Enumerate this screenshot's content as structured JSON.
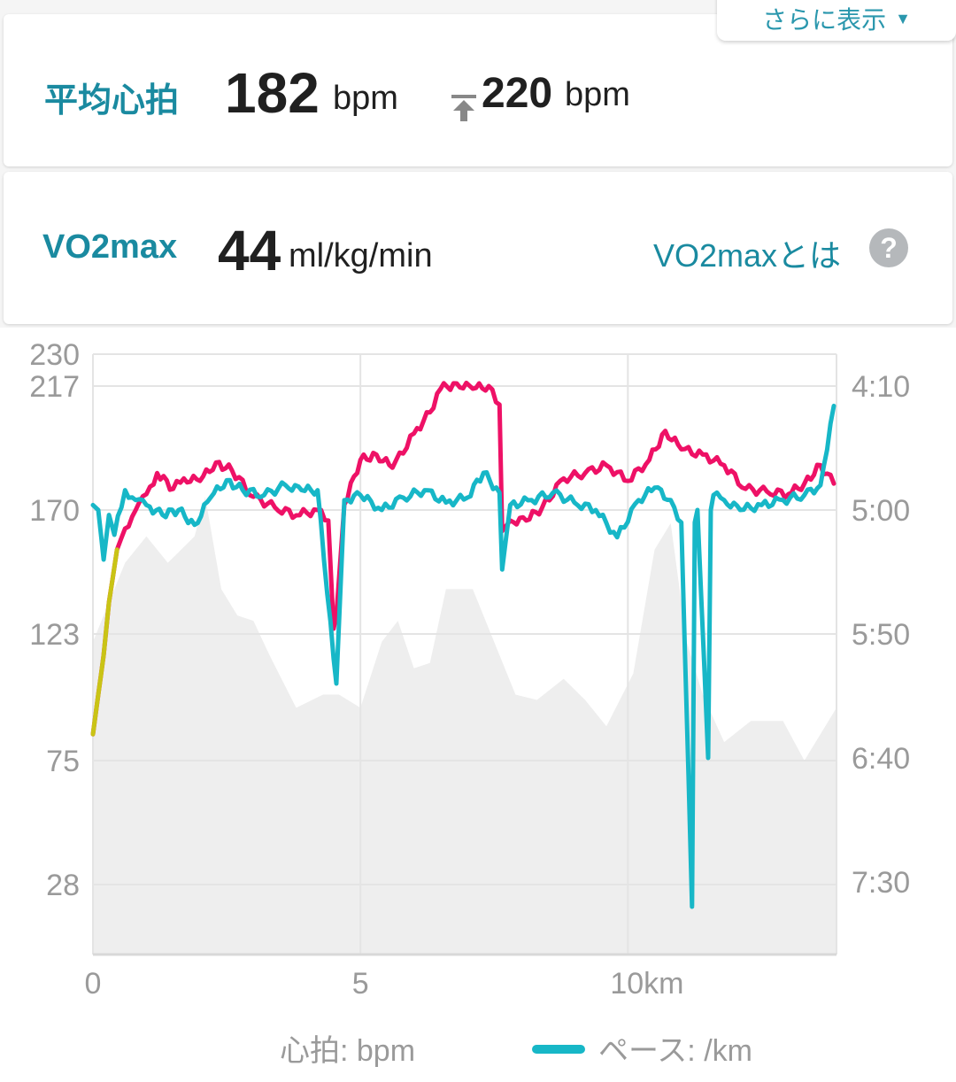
{
  "more": {
    "label": "さらに表示"
  },
  "heart_rate": {
    "label": "平均心拍",
    "avg_value": "182",
    "avg_unit": "bpm",
    "max_value": "220",
    "max_unit": "bpm"
  },
  "vo2": {
    "label": "VO2max",
    "value": "44",
    "unit": "ml/kg/min",
    "link": "VO2maxとは",
    "help": "?"
  },
  "colors": {
    "heart_rate_line": "#ee1166",
    "pace_line": "#17b7c7",
    "elevation_fill": "#eeeeee",
    "accent": "#1a8aa0"
  },
  "chart_data": {
    "type": "line",
    "x_ticks": [
      "0",
      "5",
      "10km"
    ],
    "xlim": [
      0,
      13.9
    ],
    "left_axis": {
      "ticks": [
        "230",
        "217",
        "170",
        "123",
        "75",
        "28"
      ],
      "ylim": [
        0,
        230
      ]
    },
    "right_axis": {
      "ticks": [
        "4:10",
        "5:00",
        "5:50",
        "6:40",
        "7:30"
      ]
    },
    "legend": [
      "心拍: bpm",
      "ペース: /km"
    ],
    "series": [
      {
        "name": "心拍: bpm",
        "x": [
          0,
          0.1,
          0.2,
          0.3,
          0.45,
          0.6,
          0.8,
          1.0,
          1.2,
          1.5,
          1.7,
          2.0,
          2.3,
          2.6,
          3.0,
          3.4,
          3.8,
          4.2,
          4.4,
          4.5,
          4.55,
          4.7,
          5.0,
          5.3,
          5.6,
          6.0,
          6.3,
          6.5,
          6.8,
          7.1,
          7.4,
          7.6,
          7.65,
          7.8,
          8.1,
          8.4,
          8.8,
          9.2,
          9.6,
          10.0,
          10.4,
          10.7,
          11.0,
          11.4,
          11.8,
          12.2,
          12.6,
          13.0,
          13.3,
          13.6,
          13.85
        ],
        "values": [
          85,
          100,
          115,
          135,
          155,
          163,
          170,
          176,
          184,
          178,
          182,
          181,
          188,
          185,
          175,
          171,
          168,
          170,
          166,
          125,
          130,
          172,
          189,
          191,
          186,
          199,
          207,
          216,
          218,
          216,
          217,
          210,
          162,
          166,
          166,
          171,
          182,
          184,
          187,
          181,
          189,
          200,
          193,
          191,
          187,
          178,
          177,
          176,
          180,
          187,
          180
        ]
      },
      {
        "name": "ペース: /km",
        "x": [
          0,
          0.1,
          0.2,
          0.3,
          0.4,
          0.6,
          0.8,
          1.0,
          1.3,
          1.6,
          1.9,
          2.2,
          2.5,
          2.8,
          3.2,
          3.6,
          3.9,
          4.2,
          4.5,
          4.55,
          4.7,
          5.0,
          5.4,
          5.8,
          6.2,
          6.6,
          7.0,
          7.3,
          7.6,
          7.65,
          7.8,
          8.2,
          8.6,
          9.0,
          9.4,
          9.8,
          10.2,
          10.5,
          10.8,
          11.0,
          11.2,
          11.25,
          11.3,
          11.5,
          11.55,
          11.6,
          11.8,
          12.1,
          12.5,
          12.9,
          13.3,
          13.6,
          13.85
        ],
        "values": [
          "4:58",
          "5:00",
          "5:20",
          "5:02",
          "5:10",
          "4:52",
          "4:56",
          "4:58",
          "5:02",
          "5:00",
          "5:06",
          "4:55",
          "4:48",
          "4:52",
          "4:54",
          "4:50",
          "4:52",
          "4:52",
          "6:00",
          "6:10",
          "4:56",
          "4:54",
          "5:00",
          "4:55",
          "4:52",
          "4:57",
          "4:55",
          "4:45",
          "4:53",
          "5:24",
          "4:58",
          "4:56",
          "4:53",
          "4:57",
          "5:00",
          "5:11",
          "4:56",
          "4:51",
          "4:56",
          "5:05",
          "7:40",
          "5:05",
          "5:00",
          "6:40",
          "5:00",
          "4:54",
          "4:56",
          "5:00",
          "4:58",
          "4:56",
          "4:54",
          "4:50",
          "4:18"
        ]
      }
    ],
    "elevation_fill": "gray area behind lines (unlabelled)"
  }
}
